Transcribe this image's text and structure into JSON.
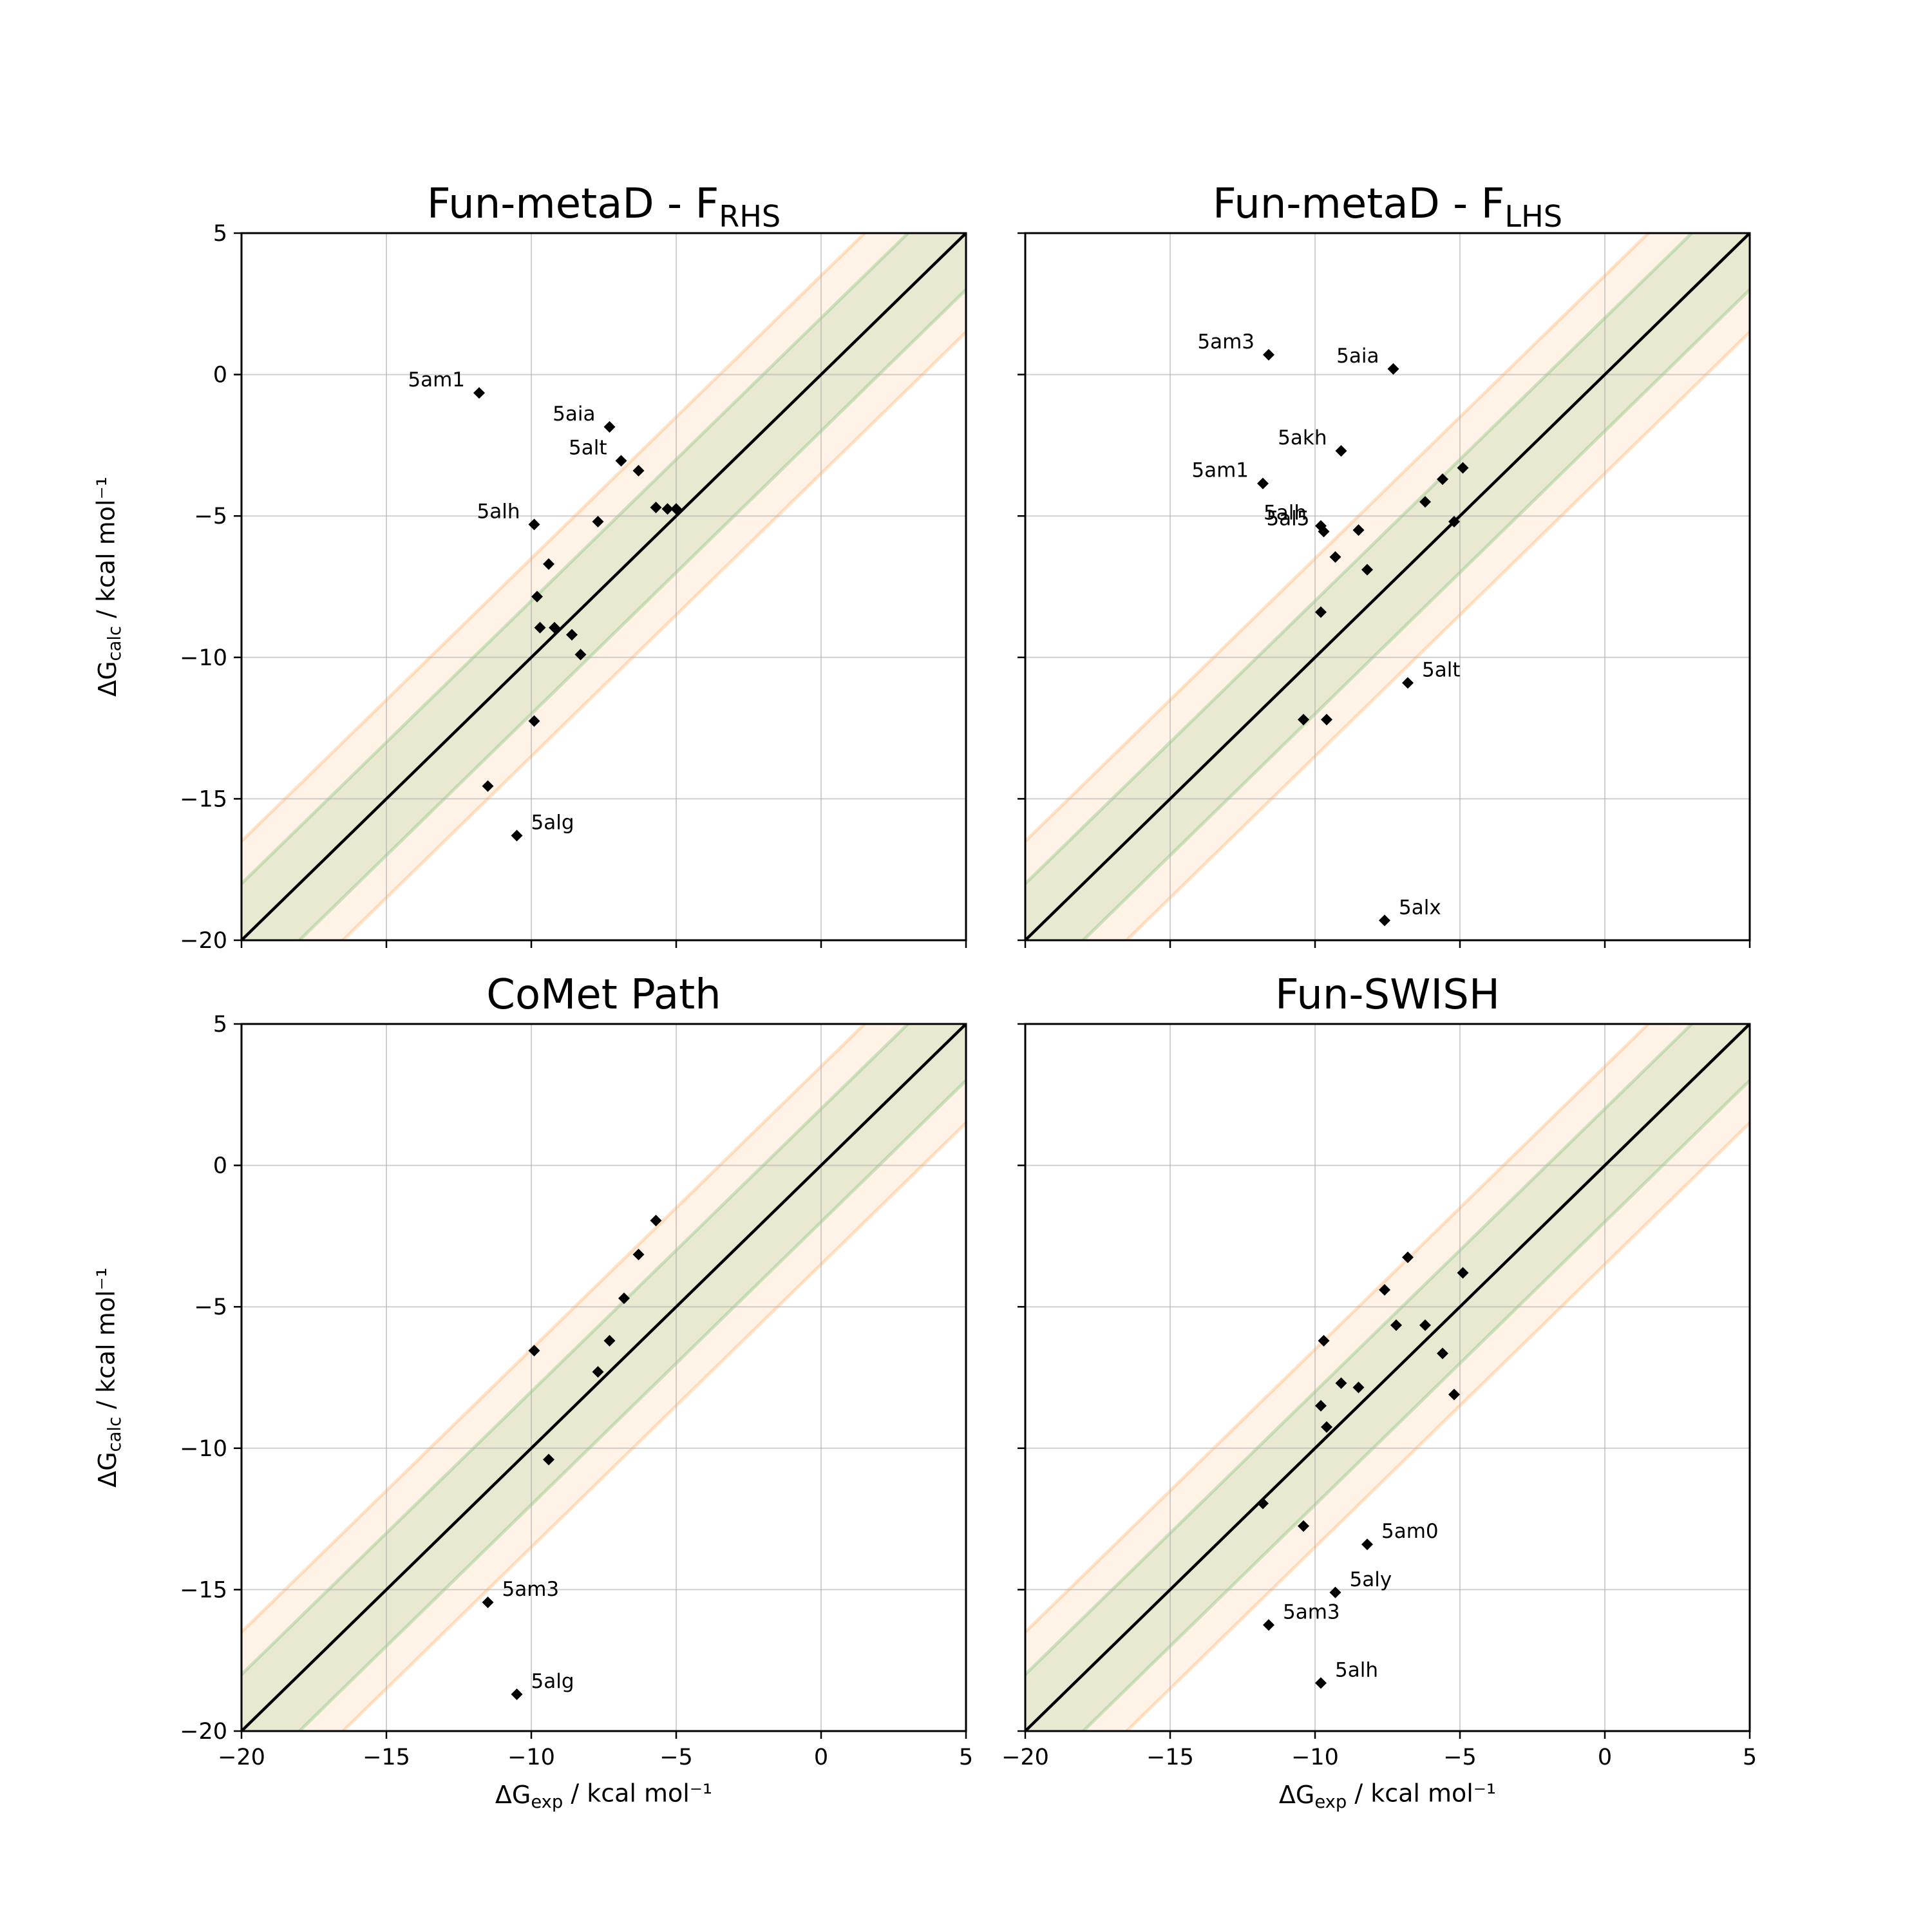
{
  "chart_data": [
    {
      "type": "scatter",
      "title": "Fun-metaD - F",
      "title_sub": "RHS",
      "xlabel": "",
      "ylabel": "ΔG|calc| / kcal mol⁻¹",
      "xlim": [
        -20,
        5
      ],
      "ylim": [
        -20,
        5
      ],
      "xticks": [
        -20,
        -15,
        -10,
        -5,
        0,
        5
      ],
      "yticks": [
        -20,
        -15,
        -10,
        -5,
        0,
        5
      ],
      "show_xtick_labels": false,
      "show_ytick_labels": true,
      "grid": true,
      "bands": [
        {
          "half_width": 2,
          "color": "#2ca02c"
        },
        {
          "half_width": 3.5,
          "color": "#ff7f0e"
        }
      ],
      "points": [
        {
          "x": -11.8,
          "y": -0.65,
          "label": "5am1",
          "label_pos": "left"
        },
        {
          "x": -7.3,
          "y": -1.85,
          "label": "5aia",
          "label_pos": "left"
        },
        {
          "x": -6.9,
          "y": -3.05,
          "label": "5alt",
          "label_pos": "left"
        },
        {
          "x": -6.3,
          "y": -3.4
        },
        {
          "x": -9.9,
          "y": -5.3,
          "label": "5alh",
          "label_pos": "left"
        },
        {
          "x": -7.7,
          "y": -5.2
        },
        {
          "x": -5.7,
          "y": -4.7
        },
        {
          "x": -5.3,
          "y": -4.75
        },
        {
          "x": -5.0,
          "y": -4.75
        },
        {
          "x": -9.4,
          "y": -6.7
        },
        {
          "x": -9.8,
          "y": -7.85
        },
        {
          "x": -9.7,
          "y": -8.95
        },
        {
          "x": -9.2,
          "y": -8.95
        },
        {
          "x": -8.6,
          "y": -9.2
        },
        {
          "x": -8.3,
          "y": -9.9
        },
        {
          "x": -9.9,
          "y": -12.25
        },
        {
          "x": -11.5,
          "y": -14.55
        },
        {
          "x": -10.5,
          "y": -16.3,
          "label": "5alg",
          "label_pos": "right"
        }
      ]
    },
    {
      "type": "scatter",
      "title": "Fun-metaD - F",
      "title_sub": "LHS",
      "xlabel": "",
      "ylabel": "",
      "xlim": [
        -20,
        5
      ],
      "ylim": [
        -20,
        5
      ],
      "xticks": [
        -20,
        -15,
        -10,
        -5,
        0,
        5
      ],
      "yticks": [
        -20,
        -15,
        -10,
        -5,
        0,
        5
      ],
      "show_xtick_labels": false,
      "show_ytick_labels": false,
      "grid": true,
      "bands": [
        {
          "half_width": 2,
          "color": "#2ca02c"
        },
        {
          "half_width": 3.5,
          "color": "#ff7f0e"
        }
      ],
      "points": [
        {
          "x": -11.6,
          "y": 0.7,
          "label": "5am3",
          "label_pos": "left"
        },
        {
          "x": -7.3,
          "y": 0.2,
          "label": "5aia",
          "label_pos": "left"
        },
        {
          "x": -9.1,
          "y": -2.7,
          "label": "5akh",
          "label_pos": "left"
        },
        {
          "x": -11.8,
          "y": -3.85,
          "label": "5am1",
          "label_pos": "left"
        },
        {
          "x": -9.8,
          "y": -5.35,
          "label": "5alh",
          "label_pos": "left"
        },
        {
          "x": -9.7,
          "y": -5.55,
          "label": "5al5",
          "label_pos": "left"
        },
        {
          "x": -8.5,
          "y": -5.5
        },
        {
          "x": -6.2,
          "y": -4.5
        },
        {
          "x": -5.6,
          "y": -3.7
        },
        {
          "x": -4.9,
          "y": -3.3
        },
        {
          "x": -5.2,
          "y": -5.2
        },
        {
          "x": -9.3,
          "y": -6.45
        },
        {
          "x": -8.2,
          "y": -6.9
        },
        {
          "x": -9.8,
          "y": -8.4
        },
        {
          "x": -6.8,
          "y": -10.9,
          "label": "5alt",
          "label_pos": "right"
        },
        {
          "x": -10.4,
          "y": -12.2
        },
        {
          "x": -9.6,
          "y": -12.2
        },
        {
          "x": -7.6,
          "y": -19.3,
          "label": "5alx",
          "label_pos": "right"
        }
      ]
    },
    {
      "type": "scatter",
      "title": "CoMet Path",
      "title_sub": "",
      "xlabel": "ΔG|exp| / kcal mol⁻¹",
      "ylabel": "ΔG|calc| / kcal mol⁻¹",
      "xlim": [
        -20,
        5
      ],
      "ylim": [
        -20,
        5
      ],
      "xticks": [
        -20,
        -15,
        -10,
        -5,
        0,
        5
      ],
      "yticks": [
        -20,
        -15,
        -10,
        -5,
        0,
        5
      ],
      "show_xtick_labels": true,
      "show_ytick_labels": true,
      "grid": true,
      "bands": [
        {
          "half_width": 2,
          "color": "#2ca02c"
        },
        {
          "half_width": 3.5,
          "color": "#ff7f0e"
        }
      ],
      "points": [
        {
          "x": -5.7,
          "y": -1.95
        },
        {
          "x": -6.3,
          "y": -3.15
        },
        {
          "x": -6.8,
          "y": -4.7
        },
        {
          "x": -7.3,
          "y": -6.2
        },
        {
          "x": -7.7,
          "y": -7.3
        },
        {
          "x": -9.9,
          "y": -6.55
        },
        {
          "x": -9.4,
          "y": -10.4
        },
        {
          "x": -11.5,
          "y": -15.45,
          "label": "5am3",
          "label_pos": "right"
        },
        {
          "x": -10.5,
          "y": -18.7,
          "label": "5alg",
          "label_pos": "right"
        }
      ]
    },
    {
      "type": "scatter",
      "title": "Fun-SWISH",
      "title_sub": "",
      "xlabel": "ΔG|exp| / kcal mol⁻¹",
      "ylabel": "",
      "xlim": [
        -20,
        5
      ],
      "ylim": [
        -20,
        5
      ],
      "xticks": [
        -20,
        -15,
        -10,
        -5,
        0,
        5
      ],
      "yticks": [
        -20,
        -15,
        -10,
        -5,
        0,
        5
      ],
      "show_xtick_labels": true,
      "show_ytick_labels": false,
      "grid": true,
      "bands": [
        {
          "half_width": 2,
          "color": "#2ca02c"
        },
        {
          "half_width": 3.5,
          "color": "#ff7f0e"
        }
      ],
      "points": [
        {
          "x": -6.8,
          "y": -3.25
        },
        {
          "x": -4.9,
          "y": -3.8
        },
        {
          "x": -7.6,
          "y": -4.4
        },
        {
          "x": -7.2,
          "y": -5.65
        },
        {
          "x": -6.2,
          "y": -5.65
        },
        {
          "x": -9.7,
          "y": -6.2
        },
        {
          "x": -5.6,
          "y": -6.65
        },
        {
          "x": -9.1,
          "y": -7.7
        },
        {
          "x": -8.5,
          "y": -7.85
        },
        {
          "x": -5.2,
          "y": -8.1
        },
        {
          "x": -9.8,
          "y": -8.5
        },
        {
          "x": -9.6,
          "y": -9.25
        },
        {
          "x": -11.8,
          "y": -11.95
        },
        {
          "x": -10.4,
          "y": -12.75
        },
        {
          "x": -8.2,
          "y": -13.4,
          "label": "5am0",
          "label_pos": "right"
        },
        {
          "x": -9.3,
          "y": -15.1,
          "label": "5aly",
          "label_pos": "right"
        },
        {
          "x": -11.6,
          "y": -16.25,
          "label": "5am3",
          "label_pos": "right"
        },
        {
          "x": -9.8,
          "y": -18.3,
          "label": "5alh",
          "label_pos": "right"
        }
      ]
    }
  ]
}
